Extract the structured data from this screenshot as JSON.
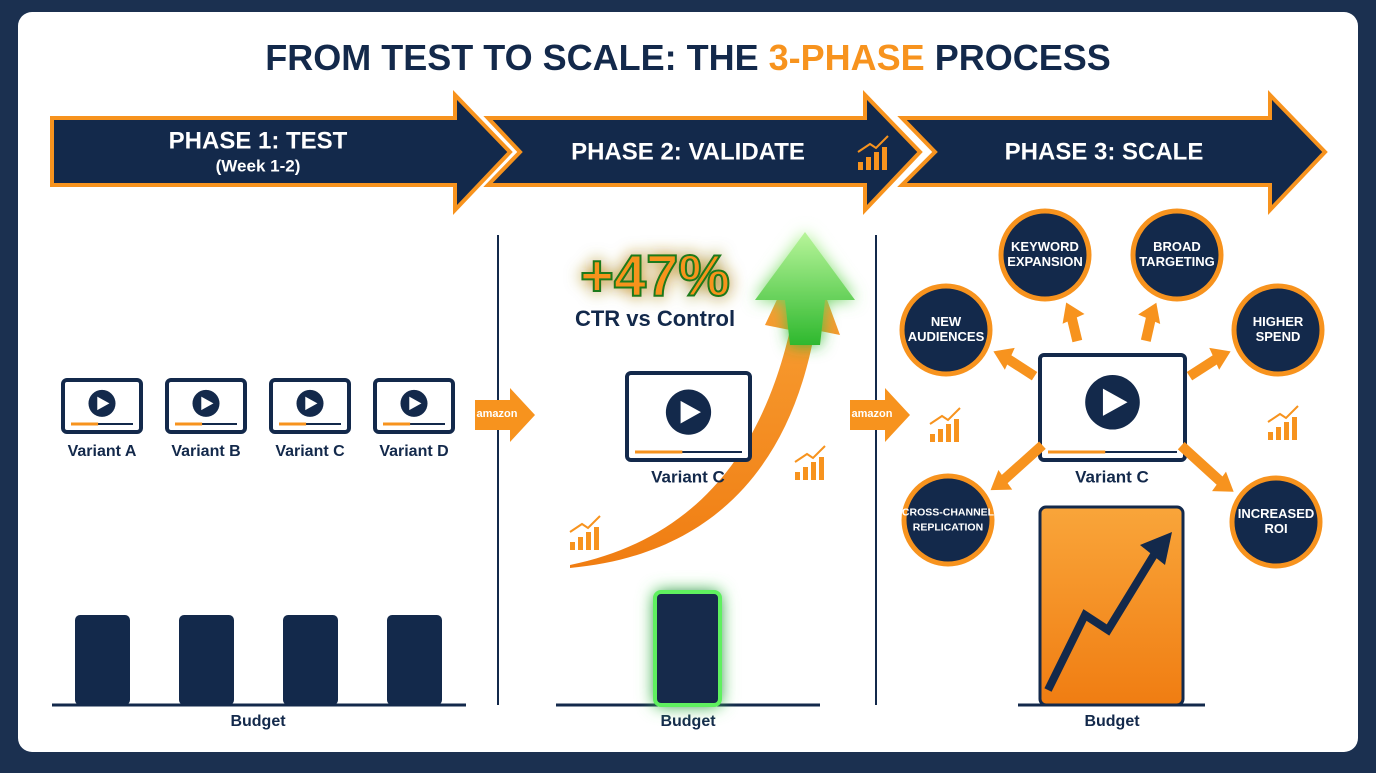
{
  "header": {
    "prefix": "FROM TEST TO SCALE: THE",
    "highlight": "3-PHASE",
    "suffix": "PROCESS"
  },
  "phases": [
    {
      "title": "PHASE 1: TEST",
      "subtitle": "(Week 1-2)"
    },
    {
      "title": "PHASE 2: VALIDATE"
    },
    {
      "title": "PHASE 3: SCALE"
    }
  ],
  "phase1": {
    "variants": [
      "Variant A",
      "Variant B",
      "Variant C",
      "Variant D"
    ],
    "budget": "Budget"
  },
  "connector_label": "amazon",
  "phase2": {
    "lift": "+47%",
    "lift_caption": "CTR vs Control",
    "variant": "Variant C",
    "budget": "Budget"
  },
  "phase3": {
    "variant": "Variant C",
    "budget": "Budget",
    "levers": [
      {
        "lines": [
          "KEYWORD",
          "EXPANSION"
        ]
      },
      {
        "lines": [
          "BROAD",
          "TARGETING"
        ]
      },
      {
        "lines": [
          "NEW",
          "AUDIENCES"
        ]
      },
      {
        "lines": [
          "HIGHER",
          "SPEND"
        ]
      },
      {
        "lines": [
          "CROSS-CHANNEL",
          "REPLICATION"
        ]
      },
      {
        "lines": [
          "INCREASED",
          "ROI"
        ]
      }
    ]
  }
}
